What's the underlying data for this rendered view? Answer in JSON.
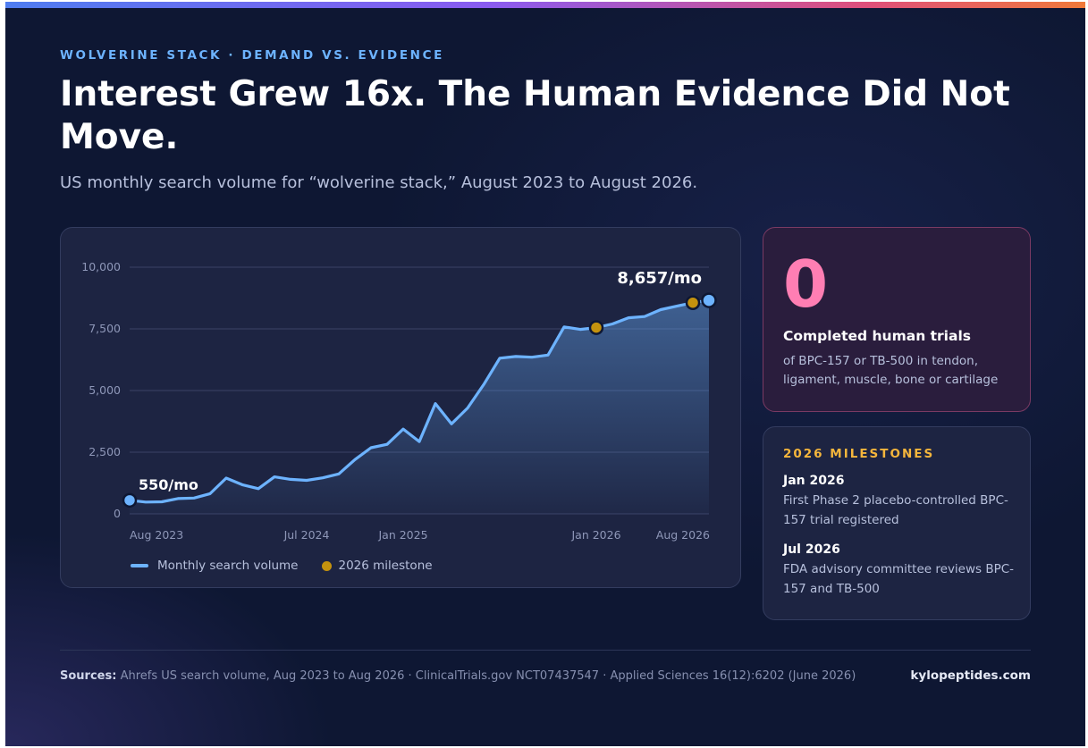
{
  "kicker": "WOLVERINE STACK · DEMAND VS. EVIDENCE",
  "headline": "Interest Grew 16x. The Human Evidence Did Not Move.",
  "subtitle": "US monthly search volume for “wolverine stack,” August 2023 to August 2026.",
  "colors": {
    "line": "#6db3ff",
    "milestone": "#c4920e",
    "stat": "#ff7eb3",
    "accent_gold": "#f5b63c",
    "background": "#0e1733"
  },
  "chart_data": {
    "type": "area",
    "title": "",
    "xlabel": "",
    "ylabel": "",
    "ylim": [
      0,
      10000
    ],
    "y_ticks": [
      0,
      2500,
      5000,
      7500,
      10000
    ],
    "y_tick_labels": [
      "0",
      "2,500",
      "5,000",
      "7,500",
      "10,000"
    ],
    "x_range": [
      "2023-08",
      "2026-08"
    ],
    "x_tick_labels": [
      {
        "label": "Aug 2023",
        "month": "2023-08"
      },
      {
        "label": "Jul 2024",
        "month": "2024-07"
      },
      {
        "label": "Jan 2025",
        "month": "2025-01"
      },
      {
        "label": "Jan 2026",
        "month": "2026-01"
      },
      {
        "label": "Aug 2026",
        "month": "2026-08"
      }
    ],
    "grid": true,
    "series": [
      {
        "name": "Monthly search volume",
        "x": [
          "2023-08",
          "2023-09",
          "2023-10",
          "2023-11",
          "2023-12",
          "2024-01",
          "2024-02",
          "2024-03",
          "2024-04",
          "2024-05",
          "2024-06",
          "2024-07",
          "2024-08",
          "2024-09",
          "2024-10",
          "2024-11",
          "2024-12",
          "2025-01",
          "2025-02",
          "2025-03",
          "2025-04",
          "2025-05",
          "2025-06",
          "2025-07",
          "2025-08",
          "2025-09",
          "2025-10",
          "2025-11",
          "2025-12",
          "2026-01",
          "2026-02",
          "2026-03",
          "2026-04",
          "2026-05",
          "2026-06",
          "2026-07",
          "2026-08"
        ],
        "values": [
          550,
          480,
          490,
          620,
          640,
          820,
          1450,
          1180,
          1020,
          1500,
          1400,
          1360,
          1460,
          1620,
          2200,
          2680,
          2820,
          3440,
          2930,
          4470,
          3650,
          4290,
          5240,
          6310,
          6380,
          6350,
          6440,
          7580,
          7480,
          7550,
          7700,
          7950,
          8000,
          8280,
          8420,
          8560,
          8657
        ]
      },
      {
        "name": "2026 milestone",
        "x": [
          "2026-01",
          "2026-07"
        ],
        "values": [
          7550,
          8560
        ]
      }
    ],
    "annotations": [
      {
        "text": "550/mo",
        "month": "2023-08",
        "value": 550
      },
      {
        "text": "8,657/mo",
        "month": "2026-08",
        "value": 8657
      }
    ],
    "legend": {
      "placement": "bottom-left",
      "items": [
        "Monthly search volume",
        "2026 milestone"
      ]
    }
  },
  "stat": {
    "number": "0",
    "label": "Completed human trials",
    "description": "of BPC-157 or TB-500 in tendon, ligament, muscle, bone or cartilage"
  },
  "milestones": {
    "title": "2026 MILESTONES",
    "items": [
      {
        "date": "Jan 2026",
        "text": "First Phase 2 placebo-controlled BPC-157 trial registered"
      },
      {
        "date": "Jul 2026",
        "text": "FDA advisory committee reviews BPC-157 and TB-500"
      }
    ]
  },
  "footer": {
    "sources_label": "Sources:",
    "sources_text": "Ahrefs US search volume, Aug 2023 to Aug 2026 · ClinicalTrials.gov NCT07437547 · Applied Sciences 16(12):6202 (June 2026)",
    "brand": "kylopeptides.com"
  }
}
